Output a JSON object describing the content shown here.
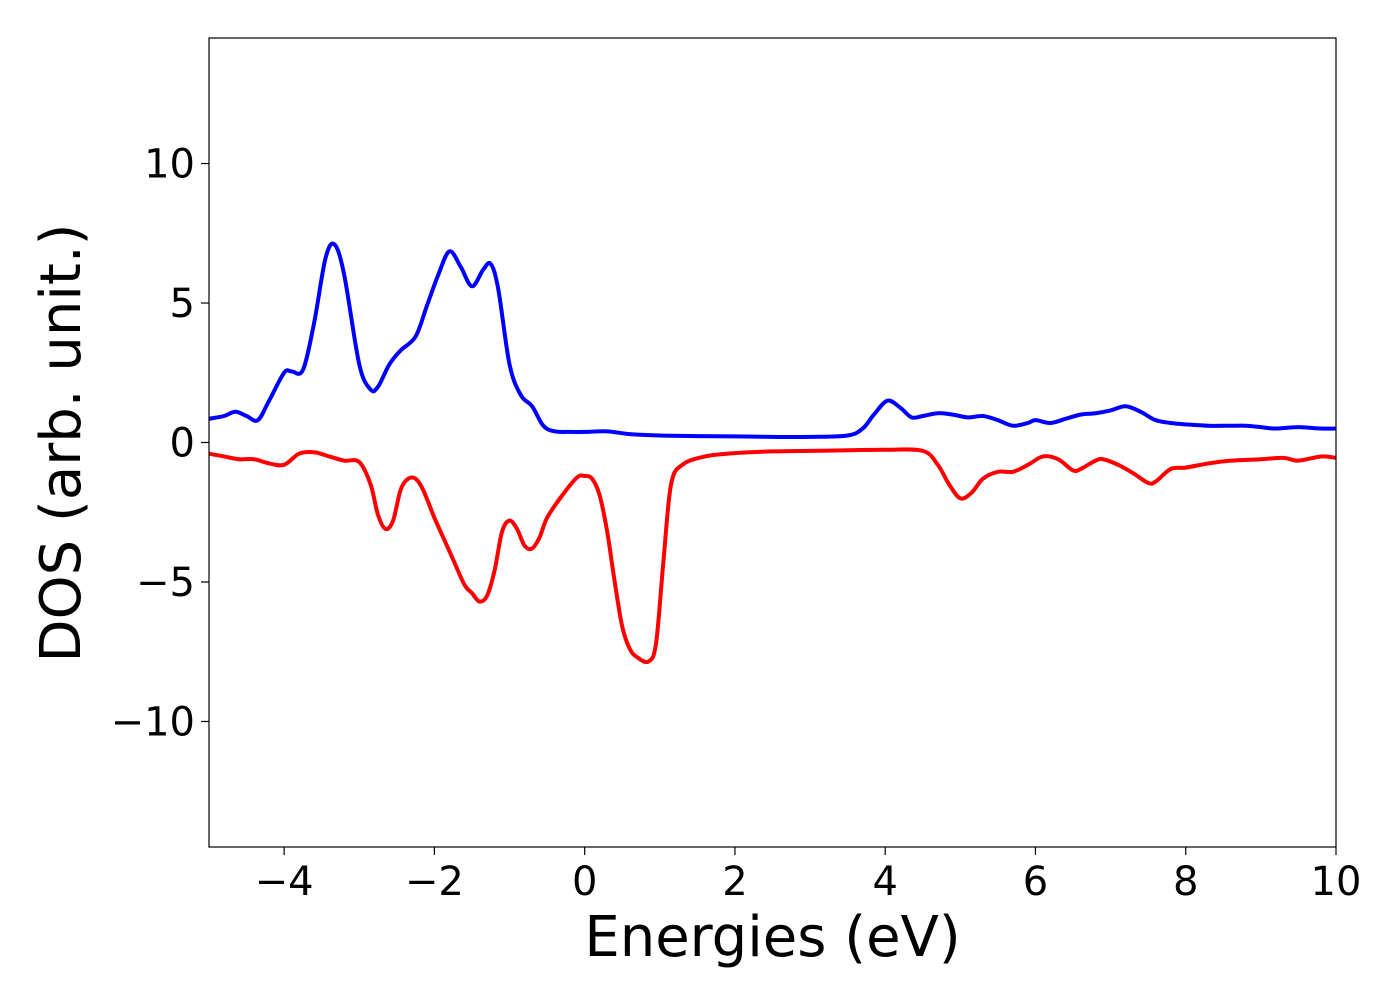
{
  "chart_data": {
    "type": "line",
    "xlabel": "Energies (eV)",
    "ylabel": "DOS (arb. unit.)",
    "xlim": [
      -5,
      10
    ],
    "ylim": [
      -14.5,
      14.5
    ],
    "x_ticks": [
      -4,
      -2,
      0,
      2,
      4,
      6,
      8,
      10
    ],
    "x_tick_labels": [
      "−4",
      "−2",
      "0",
      "2",
      "4",
      "6",
      "8",
      "10"
    ],
    "y_ticks": [
      10,
      5,
      0,
      -5,
      -10
    ],
    "y_tick_labels": [
      "10",
      "5",
      "0",
      "−5",
      "−10"
    ],
    "grid": false,
    "series": [
      {
        "color": "#0000ff",
        "x": [
          -5.0,
          -4.8,
          -4.65,
          -4.5,
          -4.35,
          -4.2,
          -4.0,
          -3.9,
          -3.75,
          -3.6,
          -3.45,
          -3.33,
          -3.2,
          -3.0,
          -2.85,
          -2.75,
          -2.6,
          -2.45,
          -2.25,
          -2.1,
          -1.95,
          -1.8,
          -1.65,
          -1.5,
          -1.35,
          -1.25,
          -1.15,
          -1.0,
          -0.85,
          -0.7,
          -0.55,
          -0.4,
          -0.2,
          0.0,
          0.3,
          0.6,
          1.0,
          1.5,
          2.0,
          2.5,
          3.0,
          3.5,
          3.7,
          3.85,
          4.03,
          4.2,
          4.35,
          4.5,
          4.7,
          4.9,
          5.1,
          5.3,
          5.5,
          5.7,
          5.9,
          6.0,
          6.2,
          6.4,
          6.6,
          6.8,
          7.0,
          7.2,
          7.4,
          7.6,
          7.8,
          8.0,
          8.3,
          8.6,
          8.8,
          9.0,
          9.2,
          9.5,
          9.8,
          10.0
        ],
        "y": [
          0.85,
          0.95,
          1.1,
          0.95,
          0.8,
          1.5,
          2.5,
          2.55,
          2.6,
          4.3,
          6.6,
          7.1,
          6.0,
          2.8,
          1.9,
          2.0,
          2.8,
          3.3,
          3.8,
          4.9,
          6.0,
          6.85,
          6.3,
          5.6,
          6.2,
          6.4,
          5.5,
          2.8,
          1.7,
          1.3,
          0.6,
          0.4,
          0.38,
          0.38,
          0.4,
          0.3,
          0.25,
          0.23,
          0.22,
          0.2,
          0.2,
          0.25,
          0.5,
          1.0,
          1.5,
          1.25,
          0.9,
          0.95,
          1.05,
          1.0,
          0.9,
          0.95,
          0.8,
          0.6,
          0.7,
          0.8,
          0.7,
          0.85,
          1.0,
          1.05,
          1.15,
          1.3,
          1.1,
          0.8,
          0.7,
          0.65,
          0.6,
          0.6,
          0.6,
          0.55,
          0.5,
          0.55,
          0.5,
          0.5
        ]
      },
      {
        "color": "#ff0000",
        "x": [
          -5.0,
          -4.8,
          -4.6,
          -4.4,
          -4.2,
          -4.0,
          -3.8,
          -3.6,
          -3.4,
          -3.2,
          -3.0,
          -2.85,
          -2.75,
          -2.65,
          -2.55,
          -2.45,
          -2.35,
          -2.25,
          -2.15,
          -2.0,
          -1.9,
          -1.75,
          -1.6,
          -1.5,
          -1.4,
          -1.3,
          -1.2,
          -1.1,
          -1.0,
          -0.9,
          -0.8,
          -0.7,
          -0.6,
          -0.5,
          -0.3,
          -0.1,
          0.0,
          0.1,
          0.2,
          0.3,
          0.4,
          0.5,
          0.6,
          0.7,
          0.85,
          0.95,
          1.05,
          1.15,
          1.3,
          1.6,
          2.0,
          2.5,
          3.0,
          3.5,
          4.0,
          4.5,
          4.7,
          4.85,
          5.0,
          5.15,
          5.3,
          5.5,
          5.7,
          5.9,
          6.1,
          6.3,
          6.5,
          6.6,
          6.8,
          6.9,
          7.1,
          7.3,
          7.5,
          7.6,
          7.8,
          8.0,
          8.3,
          8.6,
          9.0,
          9.3,
          9.5,
          9.8,
          10.0
        ],
        "y": [
          -0.4,
          -0.5,
          -0.6,
          -0.6,
          -0.75,
          -0.8,
          -0.4,
          -0.35,
          -0.5,
          -0.65,
          -0.7,
          -1.5,
          -2.6,
          -3.1,
          -2.8,
          -1.7,
          -1.3,
          -1.3,
          -1.7,
          -2.7,
          -3.3,
          -4.2,
          -5.1,
          -5.4,
          -5.7,
          -5.5,
          -4.6,
          -3.2,
          -2.8,
          -3.1,
          -3.7,
          -3.8,
          -3.4,
          -2.7,
          -1.9,
          -1.25,
          -1.2,
          -1.3,
          -1.9,
          -3.2,
          -5.0,
          -6.6,
          -7.4,
          -7.7,
          -7.85,
          -7.2,
          -4.2,
          -1.5,
          -0.8,
          -0.5,
          -0.38,
          -0.32,
          -0.3,
          -0.28,
          -0.26,
          -0.3,
          -0.8,
          -1.5,
          -2.0,
          -1.8,
          -1.3,
          -1.05,
          -1.05,
          -0.8,
          -0.5,
          -0.6,
          -1.0,
          -0.95,
          -0.65,
          -0.6,
          -0.8,
          -1.1,
          -1.45,
          -1.4,
          -0.95,
          -0.9,
          -0.75,
          -0.65,
          -0.6,
          -0.55,
          -0.65,
          -0.5,
          -0.55
        ]
      }
    ]
  }
}
